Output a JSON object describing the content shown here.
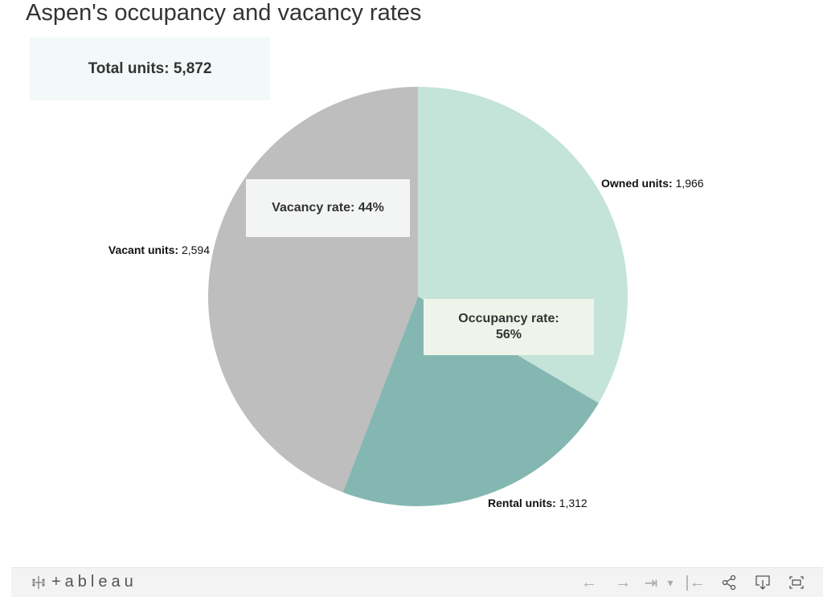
{
  "title": "Aspen's occupancy and vacancy rates",
  "total": {
    "label": "Total units:",
    "value": "5,872"
  },
  "chart_data": {
    "type": "pie",
    "title": "Aspen's occupancy and vacancy rates",
    "slices": [
      {
        "label": "Owned units:",
        "value": 1966,
        "display": "1,966",
        "color": "#c4e3d9"
      },
      {
        "label": "Rental units:",
        "value": 1312,
        "display": "1,312",
        "color": "#84b7b2"
      },
      {
        "label": "Vacant units:",
        "value": 2594,
        "display": "2,594",
        "color": "#bdbebd"
      }
    ],
    "annotations": [
      {
        "text": "Vacancy rate: 44%"
      },
      {
        "line1": "Occupancy rate:",
        "line2": "56%"
      }
    ]
  },
  "toolbar": {
    "logo_text": "+ableau",
    "icons": [
      "undo-icon",
      "redo-icon",
      "revert-icon",
      "dropdown-icon",
      "reset-icon",
      "share-icon",
      "download-icon",
      "fullscreen-icon"
    ],
    "icon_glyphs": {
      "undo": "←",
      "redo": "→",
      "revert": "⇥",
      "dropdown": "▾",
      "reset": "|←"
    }
  }
}
